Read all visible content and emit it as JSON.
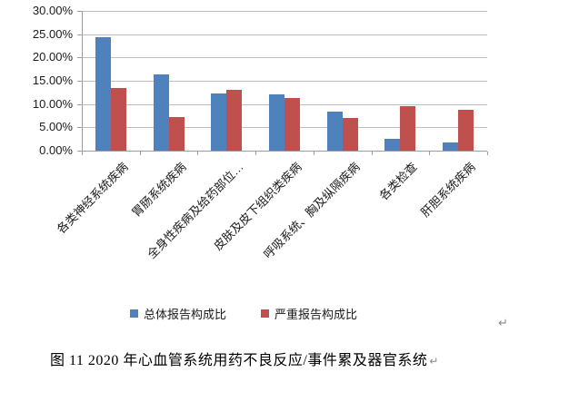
{
  "chart_data": {
    "type": "bar",
    "categories": [
      "各类神经系统疾病",
      "胃肠系统疾病",
      "全身性疾病及给药部位…",
      "皮肤及皮下组织类疾病",
      "呼吸系统、胸及纵隔疾病",
      "各类检查",
      "肝胆系统疾病"
    ],
    "series": [
      {
        "name": "总体报告构成比",
        "color": "#4f81bd",
        "values": [
          24.3,
          16.3,
          12.3,
          12.1,
          8.3,
          2.6,
          1.7
        ]
      },
      {
        "name": "严重报告构成比",
        "color": "#c0504d",
        "values": [
          13.4,
          7.2,
          13.1,
          11.3,
          7.0,
          9.5,
          8.8
        ]
      }
    ],
    "ylim": [
      0,
      30
    ],
    "ytick_step": 5,
    "ytick_labels": [
      "0.00%",
      "5.00%",
      "10.00%",
      "15.00%",
      "20.00%",
      "25.00%",
      "30.00%"
    ],
    "grid": true,
    "legend_position": "bottom",
    "title": "",
    "xlabel": "",
    "ylabel": ""
  },
  "colors": {
    "grid": "#bfbfbf",
    "axis": "#9d9d9d"
  },
  "marks": {
    "after_chart": "↵"
  },
  "caption": {
    "text": "图 11  2020 年心血管系统用药不良反应/事件累及器官系统",
    "return_mark": "↵"
  }
}
